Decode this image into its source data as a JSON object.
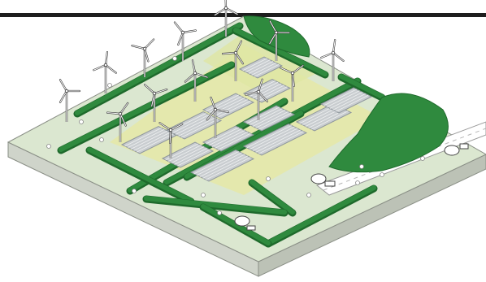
{
  "scene": {
    "subject": "isometric-wind-and-solar-landscape-illustration",
    "colors": {
      "background": "#ffffff",
      "top_bar": "#1e1e1e",
      "ground": "#dbe7d0",
      "ground_left_face": "#cfd4ca",
      "ground_right_face": "#bcc2b6",
      "field_yellow": "#e4e8a8",
      "hedge": "#2f8a3e",
      "hedge_dark": "#1f6a2c",
      "solar_panel": "#c9cdd0",
      "solar_panel_edge": "#8e969c",
      "road": "#ffffff",
      "turbine": "#ffffff",
      "turbine_stroke": "#333333"
    },
    "icons": [
      "wind-turbine-icon",
      "solar-panel-icon",
      "hedgerow-icon",
      "farmhouse-icon",
      "road-icon"
    ],
    "counts": {
      "wind_turbines": 14,
      "solar_arrays": 10,
      "farmhouses": 3
    }
  }
}
